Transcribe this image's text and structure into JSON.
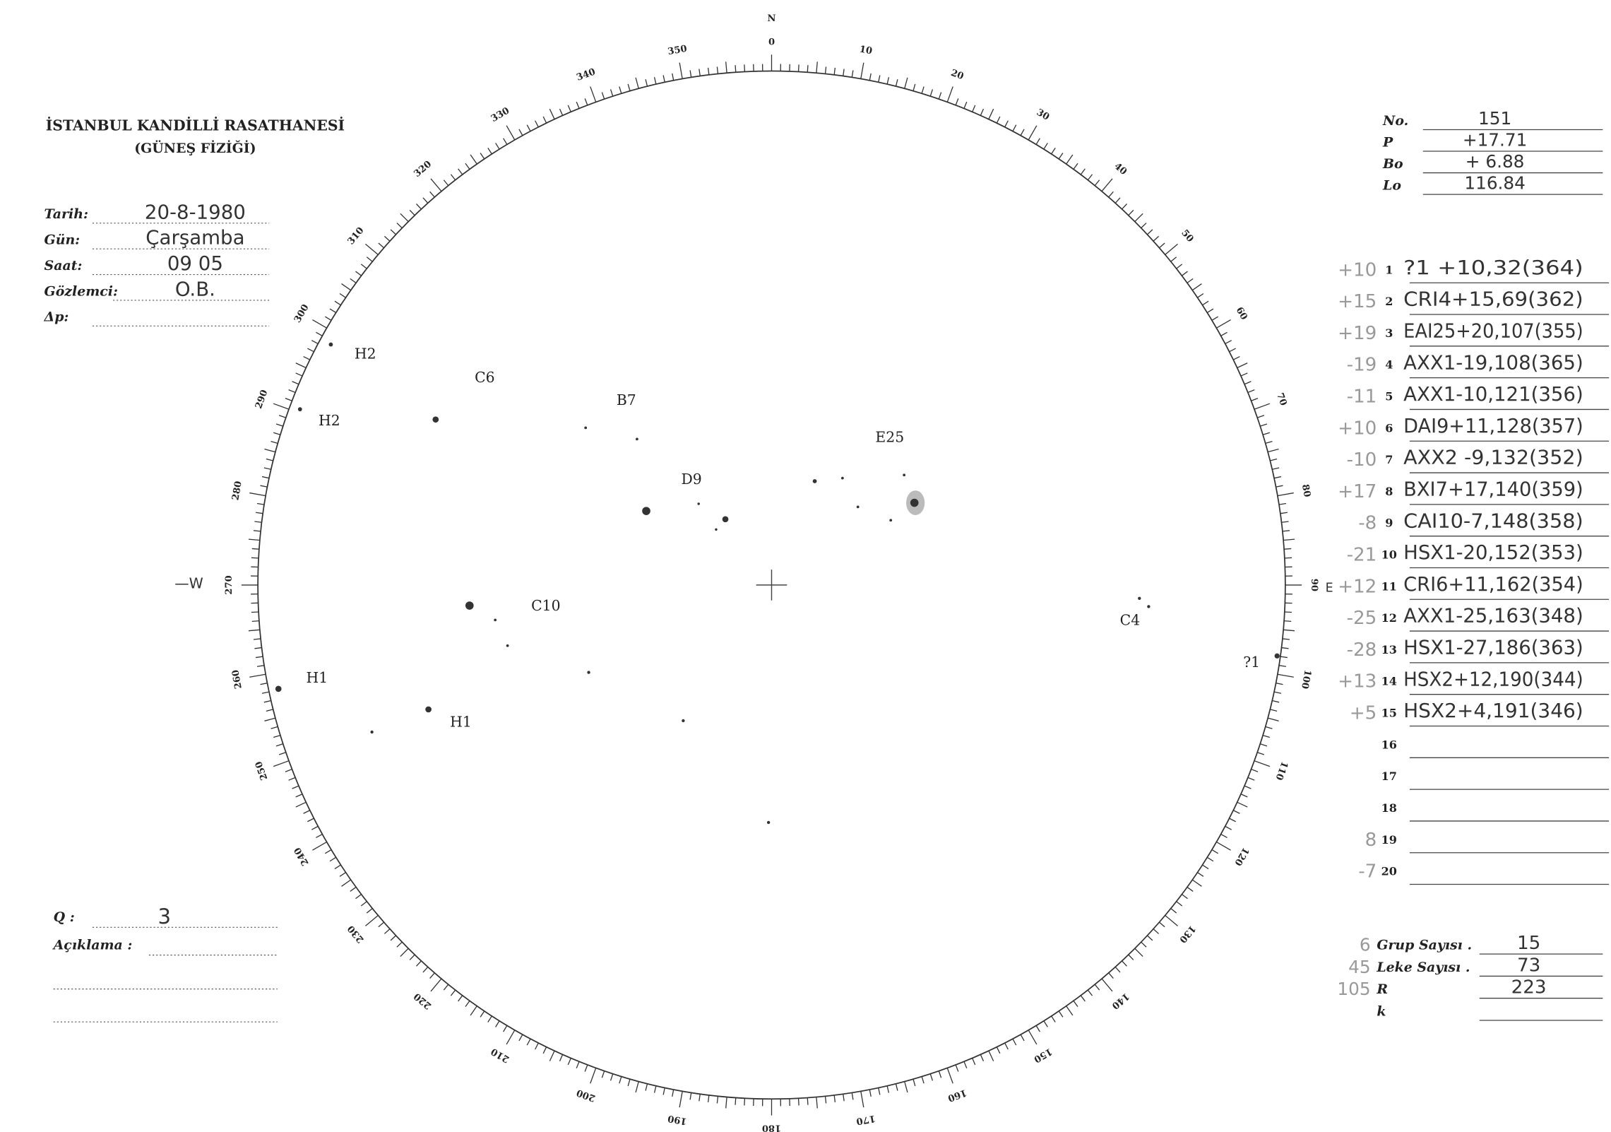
{
  "header": {
    "title": "İSTANBUL KANDİLLİ RASATHANESİ",
    "subtitle": "(GÜNEŞ FİZİĞİ)"
  },
  "fields": [
    {
      "label": "Tarih:",
      "value": "20-8-1980"
    },
    {
      "label": "Gün:",
      "value": "Çarşamba"
    },
    {
      "label": "Saat:",
      "value": "09 05"
    },
    {
      "label": "Gözlemci:",
      "value": "O.B."
    },
    {
      "label": "Δp:"
    }
  ],
  "params": [
    {
      "label": "No.",
      "value": "151"
    },
    {
      "label": "P",
      "value": "+17.71"
    },
    {
      "label": "Bo",
      "value": "+ 6.88"
    },
    {
      "label": "Lo",
      "value": "116.84"
    }
  ],
  "groups": [
    {
      "note": "+10",
      "no": "1",
      "entry": "?1 +10,32(364)"
    },
    {
      "note": "+15",
      "no": "2",
      "entry": "CRI4+15,69(362)"
    },
    {
      "note": "+19",
      "no": "3",
      "entry": "EAI25+20,107(355)"
    },
    {
      "note": "-19",
      "no": "4",
      "entry": "AXX1-19,108(365)"
    },
    {
      "note": "-11",
      "no": "5",
      "entry": "AXX1-10,121(356)"
    },
    {
      "note": "+10",
      "no": "6",
      "entry": "DAI9+11,128(357)"
    },
    {
      "note": "-10",
      "no": "7",
      "entry": "AXX2 -9,132(352)"
    },
    {
      "note": "+17",
      "no": "8",
      "entry": "BXI7+17,140(359)"
    },
    {
      "note": "-8",
      "no": "9",
      "entry": "CAI10-7,148(358)"
    },
    {
      "note": "-21",
      "no": "10",
      "entry": "HSX1-20,152(353)"
    },
    {
      "note": "+12",
      "no": "11",
      "entry": "CRI6+11,162(354)"
    },
    {
      "note": "-25",
      "no": "12",
      "entry": "AXX1-25,163(348)"
    },
    {
      "note": "-28",
      "no": "13",
      "entry": "HSX1-27,186(363)"
    },
    {
      "note": "+13",
      "no": "14",
      "entry": "HSX2+12,190(344)"
    },
    {
      "note": "+5",
      "no": "15",
      "entry": "HSX2+4,191(346)"
    },
    {
      "no": "16"
    },
    {
      "no": "17"
    },
    {
      "no": "18"
    },
    {
      "note": "8",
      "no": "19"
    },
    {
      "note": "-7",
      "no": "20"
    }
  ],
  "summary": [
    {
      "note": "6",
      "label": "Grup Sayısı .",
      "value": "15"
    },
    {
      "note": "45",
      "label": "Leke Sayısı .",
      "value": "73"
    },
    {
      "note": "105",
      "label": "R",
      "value": "223"
    },
    {
      "label": "k"
    }
  ],
  "quality": {
    "label": "Q :",
    "value": "3"
  },
  "remarks": {
    "label": "Açıklama :"
  },
  "dial": {
    "labels": [
      "0",
      "10",
      "20",
      "30",
      "40",
      "50",
      "60",
      "70",
      "80",
      "90",
      "100",
      "110",
      "120",
      "130",
      "140",
      "150",
      "160",
      "170",
      "180",
      "190",
      "200",
      "210",
      "220",
      "230",
      "240",
      "250",
      "260",
      "270",
      "280",
      "290",
      "300",
      "310",
      "320",
      "330",
      "340",
      "350"
    ],
    "north": "N",
    "west": "—W",
    "east": "E"
  },
  "sketch_labels": [
    "C6",
    "B7",
    "E25",
    "D9",
    "C10",
    "C4",
    "H2",
    "H2",
    "H1",
    "H1",
    "?1"
  ]
}
